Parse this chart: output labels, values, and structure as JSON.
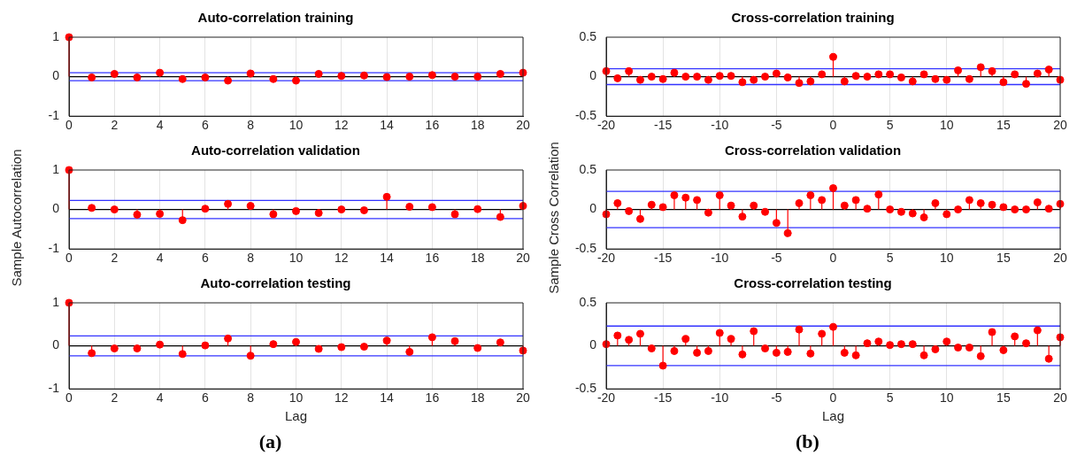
{
  "chart_data": [
    {
      "type": "lollipop",
      "title": "Auto-correlation training",
      "x": [
        0,
        1,
        2,
        3,
        4,
        5,
        6,
        7,
        8,
        9,
        10,
        11,
        12,
        13,
        14,
        15,
        16,
        17,
        18,
        19,
        20
      ],
      "values": [
        1,
        -0.02,
        0.07,
        -0.02,
        0.1,
        -0.06,
        -0.02,
        -0.1,
        0.08,
        -0.06,
        -0.1,
        0.07,
        0.02,
        0.03,
        -0.01,
        0,
        0.04,
        0,
        0,
        0.07,
        0.1
      ],
      "color": "#ff0000",
      "marker": "circle",
      "xlim": [
        0,
        20
      ],
      "xticks": [
        0,
        2,
        4,
        6,
        8,
        10,
        12,
        14,
        16,
        18,
        20
      ],
      "ylim": [
        -1,
        1
      ],
      "yticks": [
        -1,
        0,
        1
      ],
      "grid": "x",
      "ref_lines": [
        {
          "axis": "y",
          "value": 0,
          "color": "#000000"
        },
        {
          "axis": "y",
          "value": 0.1,
          "color": "#3333ff"
        },
        {
          "axis": "y",
          "value": -0.1,
          "color": "#3333ff"
        }
      ]
    },
    {
      "type": "lollipop",
      "title": "Auto-correlation validation",
      "ylabel": "Sample Autocorrelation",
      "x": [
        0,
        1,
        2,
        3,
        4,
        5,
        6,
        7,
        8,
        9,
        10,
        11,
        12,
        13,
        14,
        15,
        16,
        17,
        18,
        19,
        20
      ],
      "values": [
        1,
        0.04,
        0,
        -0.13,
        -0.11,
        -0.27,
        0.02,
        0.14,
        0.09,
        -0.12,
        -0.04,
        -0.09,
        0,
        -0.02,
        0.32,
        0.07,
        0.06,
        -0.12,
        0.01,
        -0.19,
        0.09
      ],
      "color": "#ff0000",
      "marker": "circle",
      "xlim": [
        0,
        20
      ],
      "xticks": [
        0,
        2,
        4,
        6,
        8,
        10,
        12,
        14,
        16,
        18,
        20
      ],
      "ylim": [
        -1,
        1
      ],
      "yticks": [
        -1,
        0,
        1
      ],
      "grid": "x",
      "ref_lines": [
        {
          "axis": "y",
          "value": 0,
          "color": "#000000"
        },
        {
          "axis": "y",
          "value": 0.23,
          "color": "#3333ff"
        },
        {
          "axis": "y",
          "value": -0.23,
          "color": "#3333ff"
        }
      ]
    },
    {
      "type": "lollipop",
      "title": "Auto-correlation testing",
      "xlabel": "Lag",
      "annotations": [
        "(a)"
      ],
      "x": [
        0,
        1,
        2,
        3,
        4,
        5,
        6,
        7,
        8,
        9,
        10,
        11,
        12,
        13,
        14,
        15,
        16,
        17,
        18,
        19,
        20
      ],
      "values": [
        1,
        -0.17,
        -0.06,
        -0.06,
        0.03,
        -0.19,
        0.01,
        0.17,
        -0.23,
        0.04,
        0.09,
        -0.07,
        -0.03,
        -0.02,
        0.12,
        -0.14,
        0.2,
        0.11,
        -0.05,
        0.08,
        -0.11
      ],
      "color": "#ff0000",
      "marker": "circle",
      "xlim": [
        0,
        20
      ],
      "xticks": [
        0,
        2,
        4,
        6,
        8,
        10,
        12,
        14,
        16,
        18,
        20
      ],
      "ylim": [
        -1,
        1
      ],
      "yticks": [
        -1,
        0,
        1
      ],
      "grid": "x",
      "ref_lines": [
        {
          "axis": "y",
          "value": 0,
          "color": "#000000"
        },
        {
          "axis": "y",
          "value": 0.23,
          "color": "#3333ff"
        },
        {
          "axis": "y",
          "value": -0.23,
          "color": "#3333ff"
        }
      ]
    },
    {
      "type": "lollipop",
      "title": "Cross-correlation training",
      "x": [
        -20,
        -19,
        -18,
        -17,
        -16,
        -15,
        -14,
        -13,
        -12,
        -11,
        -10,
        -9,
        -8,
        -7,
        -6,
        -5,
        -4,
        -3,
        -2,
        -1,
        0,
        1,
        2,
        3,
        4,
        5,
        6,
        7,
        8,
        9,
        10,
        11,
        12,
        13,
        14,
        15,
        16,
        17,
        18,
        19,
        20
      ],
      "values": [
        0.07,
        -0.02,
        0.07,
        -0.04,
        0,
        -0.03,
        0.05,
        0,
        0,
        -0.04,
        0.01,
        0.01,
        -0.07,
        -0.04,
        0,
        0.04,
        -0.01,
        -0.08,
        -0.06,
        0.03,
        0.25,
        -0.06,
        0.01,
        0,
        0.03,
        0.03,
        -0.01,
        -0.06,
        0.03,
        -0.03,
        -0.04,
        0.08,
        -0.03,
        0.12,
        0.07,
        -0.07,
        0.03,
        -0.09,
        0.04,
        0.09,
        -0.04
      ],
      "color": "#ff0000",
      "marker": "circle",
      "xlim": [
        -20,
        20
      ],
      "xticks": [
        -20,
        -15,
        -10,
        -5,
        0,
        5,
        10,
        15,
        20
      ],
      "ylim": [
        -0.5,
        0.5
      ],
      "yticks": [
        -0.5,
        0,
        0.5
      ],
      "grid": "x",
      "ref_lines": [
        {
          "axis": "y",
          "value": 0,
          "color": "#000000"
        },
        {
          "axis": "y",
          "value": 0.1,
          "color": "#3333ff"
        },
        {
          "axis": "y",
          "value": -0.1,
          "color": "#3333ff"
        }
      ]
    },
    {
      "type": "lollipop",
      "title": "Cross-correlation validation",
      "ylabel": "Sample Cross Correlation",
      "x": [
        -20,
        -19,
        -18,
        -17,
        -16,
        -15,
        -14,
        -13,
        -12,
        -11,
        -10,
        -9,
        -8,
        -7,
        -6,
        -5,
        -4,
        -3,
        -2,
        -1,
        0,
        1,
        2,
        3,
        4,
        5,
        6,
        7,
        8,
        9,
        10,
        11,
        12,
        13,
        14,
        15,
        16,
        17,
        18,
        19,
        20
      ],
      "values": [
        -0.06,
        0.08,
        -0.02,
        -0.12,
        0.06,
        0.03,
        0.18,
        0.15,
        0.12,
        -0.04,
        0.18,
        0.05,
        -0.09,
        0.05,
        -0.03,
        -0.17,
        -0.3,
        0.08,
        0.18,
        0.12,
        0.27,
        0.05,
        0.12,
        0.01,
        0.19,
        0,
        -0.03,
        -0.05,
        -0.1,
        0.08,
        -0.06,
        0,
        0.12,
        0.08,
        0.06,
        0.03,
        0,
        0,
        0.09,
        0.01,
        0.07
      ],
      "color": "#ff0000",
      "marker": "circle",
      "xlim": [
        -20,
        20
      ],
      "xticks": [
        -20,
        -15,
        -10,
        -5,
        0,
        5,
        10,
        15,
        20
      ],
      "ylim": [
        -0.5,
        0.5
      ],
      "yticks": [
        -0.5,
        0,
        0.5
      ],
      "grid": "x",
      "ref_lines": [
        {
          "axis": "y",
          "value": 0,
          "color": "#000000"
        },
        {
          "axis": "y",
          "value": 0.23,
          "color": "#3333ff"
        },
        {
          "axis": "y",
          "value": -0.23,
          "color": "#3333ff"
        }
      ]
    },
    {
      "type": "lollipop",
      "title": "Cross-correlation testing",
      "xlabel": "Lag",
      "annotations": [
        "(b)"
      ],
      "x": [
        -20,
        -19,
        -18,
        -17,
        -16,
        -15,
        -14,
        -13,
        -12,
        -11,
        -10,
        -9,
        -8,
        -7,
        -6,
        -5,
        -4,
        -3,
        -2,
        -1,
        0,
        1,
        2,
        3,
        4,
        5,
        6,
        7,
        8,
        9,
        10,
        11,
        12,
        13,
        14,
        15,
        16,
        17,
        18,
        19,
        20
      ],
      "values": [
        0.02,
        0.12,
        0.07,
        0.14,
        -0.03,
        -0.23,
        -0.06,
        0.08,
        -0.08,
        -0.06,
        0.15,
        0.08,
        -0.1,
        0.17,
        -0.03,
        -0.08,
        -0.07,
        0.19,
        -0.09,
        0.14,
        0.22,
        -0.08,
        -0.11,
        0.03,
        0.05,
        0.01,
        0.02,
        0.02,
        -0.11,
        -0.04,
        0.05,
        -0.02,
        -0.02,
        -0.12,
        0.16,
        -0.05,
        0.11,
        0.03,
        0.18,
        -0.15,
        0.1
      ],
      "color": "#ff0000",
      "marker": "circle",
      "xlim": [
        -20,
        20
      ],
      "xticks": [
        -20,
        -15,
        -10,
        -5,
        0,
        5,
        10,
        15,
        20
      ],
      "ylim": [
        -0.5,
        0.5
      ],
      "yticks": [
        -0.5,
        0,
        0.5
      ],
      "grid": "x",
      "ref_lines": [
        {
          "axis": "y",
          "value": 0,
          "color": "#000000"
        },
        {
          "axis": "y",
          "value": 0.23,
          "color": "#3333ff"
        },
        {
          "axis": "y",
          "value": -0.23,
          "color": "#3333ff"
        }
      ]
    }
  ]
}
